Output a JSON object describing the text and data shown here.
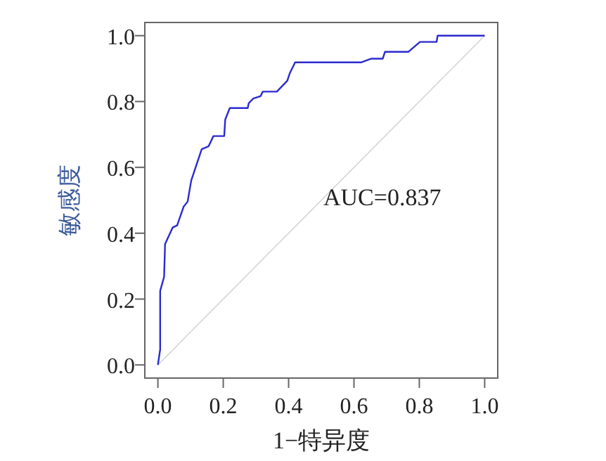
{
  "chart_data": {
    "type": "line",
    "xlabel": "1−特异度",
    "ylabel": "敏感度",
    "series": [
      {
        "color": "#2a2ad0",
        "x": [
          0,
          0.007,
          0.007,
          0.019,
          0.022,
          0.045,
          0.059,
          0.079,
          0.091,
          0.102,
          0.134,
          0.155,
          0.17,
          0.203,
          0.206,
          0.22,
          0.275,
          0.278,
          0.292,
          0.314,
          0.321,
          0.364,
          0.396,
          0.404,
          0.42,
          0.623,
          0.652,
          0.688,
          0.695,
          0.767,
          0.802,
          0.853,
          0.856,
          1.0
        ],
        "values": [
          0,
          0.047,
          0.225,
          0.268,
          0.367,
          0.417,
          0.424,
          0.481,
          0.496,
          0.56,
          0.655,
          0.664,
          0.695,
          0.695,
          0.745,
          0.78,
          0.78,
          0.795,
          0.809,
          0.816,
          0.83,
          0.83,
          0.863,
          0.887,
          0.919,
          0.919,
          0.93,
          0.93,
          0.951,
          0.951,
          0.981,
          0.981,
          1.0,
          1.0
        ]
      },
      {
        "color": "#d4d4d4",
        "x": [
          0,
          1
        ],
        "values": [
          0,
          1
        ]
      }
    ],
    "xlim": [
      -0.04,
      1.04
    ],
    "ylim": [
      -0.04,
      1.04
    ],
    "xticks": [
      {
        "value": 0,
        "label": "0.0"
      },
      0.2,
      0.4,
      0.6,
      0.8,
      {
        "value": 1,
        "label": "1.0"
      }
    ],
    "yticks": [
      {
        "value": 0,
        "label": "0.0"
      },
      0.2,
      0.4,
      0.6,
      0.8,
      {
        "value": 1,
        "label": "1.0"
      }
    ],
    "annotations": [
      "AUC=0.837"
    ],
    "grid": false
  }
}
